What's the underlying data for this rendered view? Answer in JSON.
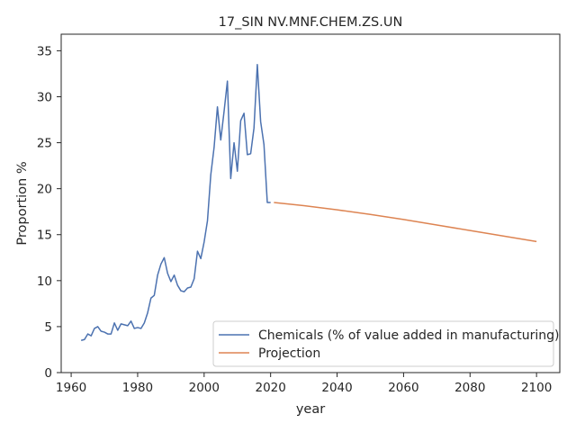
{
  "chart_data": {
    "type": "line",
    "title": "17_SIN NV.MNF.CHEM.ZS.UN",
    "xlabel": "year",
    "ylabel": "Proportion %",
    "xlim": [
      1957,
      2107
    ],
    "ylim": [
      0,
      36.8
    ],
    "xticks": [
      1960,
      1980,
      2000,
      2020,
      2040,
      2060,
      2080,
      2100
    ],
    "yticks": [
      0,
      5,
      10,
      15,
      20,
      25,
      30,
      35
    ],
    "grid": false,
    "legend_position": "lower right",
    "series": [
      {
        "name": "Chemicals (% of value added in manufacturing)",
        "color": "#4c72b0",
        "x": [
          1963,
          1964,
          1965,
          1966,
          1967,
          1968,
          1969,
          1970,
          1971,
          1972,
          1973,
          1974,
          1975,
          1976,
          1977,
          1978,
          1979,
          1980,
          1981,
          1982,
          1983,
          1984,
          1985,
          1986,
          1987,
          1988,
          1989,
          1990,
          1991,
          1992,
          1993,
          1994,
          1995,
          1996,
          1997,
          1998,
          1999,
          2000,
          2001,
          2002,
          2003,
          2004,
          2005,
          2006,
          2007,
          2008,
          2009,
          2010,
          2011,
          2012,
          2013,
          2014,
          2015,
          2016,
          2017,
          2018,
          2019,
          2020
        ],
        "y": [
          3.5,
          3.6,
          4.2,
          4.0,
          4.8,
          5.0,
          4.5,
          4.4,
          4.2,
          4.2,
          5.4,
          4.6,
          5.3,
          5.2,
          5.1,
          5.6,
          4.8,
          4.9,
          4.8,
          5.4,
          6.5,
          8.1,
          8.4,
          10.6,
          11.8,
          12.5,
          10.8,
          9.9,
          10.6,
          9.5,
          8.9,
          8.8,
          9.2,
          9.3,
          10.2,
          13.2,
          12.4,
          14.2,
          16.5,
          21.5,
          24.5,
          28.9,
          25.3,
          28.4,
          31.7,
          21.1,
          25.0,
          21.9,
          27.4,
          28.2,
          23.7,
          23.8,
          26.6,
          33.5,
          27.3,
          24.8,
          18.5,
          18.5
        ]
      },
      {
        "name": "Projection",
        "color": "#dd8452",
        "x": [
          2021,
          2030,
          2040,
          2050,
          2060,
          2070,
          2080,
          2090,
          2100
        ],
        "y": [
          18.5,
          18.15,
          17.7,
          17.2,
          16.65,
          16.05,
          15.45,
          14.85,
          14.25
        ]
      }
    ]
  }
}
